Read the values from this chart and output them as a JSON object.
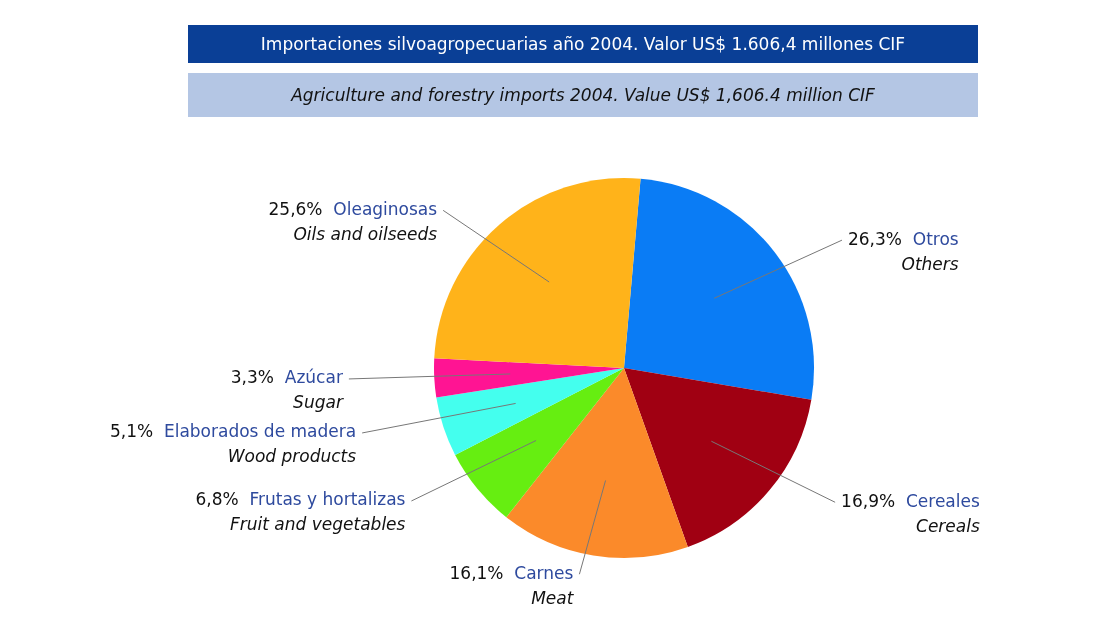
{
  "chart_data": {
    "type": "pie",
    "title": "Importaciones silvoagropecuarias año 2004. Valor US$ 1.606,4 millones CIF",
    "subtitle": "Agriculture and forestry imports 2004. Value US$ 1,606.4 million CIF",
    "categories": [
      "Otros",
      "Cereales",
      "Carnes",
      "Frutas y hortalizas",
      "Elaborados de madera",
      "Azúcar",
      "Oleaginosas"
    ],
    "values": [
      26.3,
      16.9,
      16.1,
      6.8,
      5.1,
      3.3,
      25.6
    ],
    "value_labels": [
      "26,3%",
      "16,9%",
      "16,1%",
      "6,8%",
      "5,1%",
      "3,3%",
      "25,6%"
    ],
    "colors": [
      "#0a7cf5",
      "#a00012",
      "#fb8a2a",
      "#66ee11",
      "#44ffee",
      "#ff1493",
      "#ffb31a"
    ],
    "annotations": [
      {
        "text": "Others",
        "x": "Otros"
      },
      {
        "text": "Cereals",
        "x": "Cereales"
      },
      {
        "text": "Meat",
        "x": "Carnes"
      },
      {
        "text": "Fruit and vegetables",
        "x": "Frutas y hortalizas"
      },
      {
        "text": "Wood products",
        "x": "Elaborados de madera"
      },
      {
        "text": "Sugar",
        "x": "Azúcar"
      },
      {
        "text": "Oils and oilseeds",
        "x": "Oleaginosas"
      }
    ],
    "legend": false
  }
}
